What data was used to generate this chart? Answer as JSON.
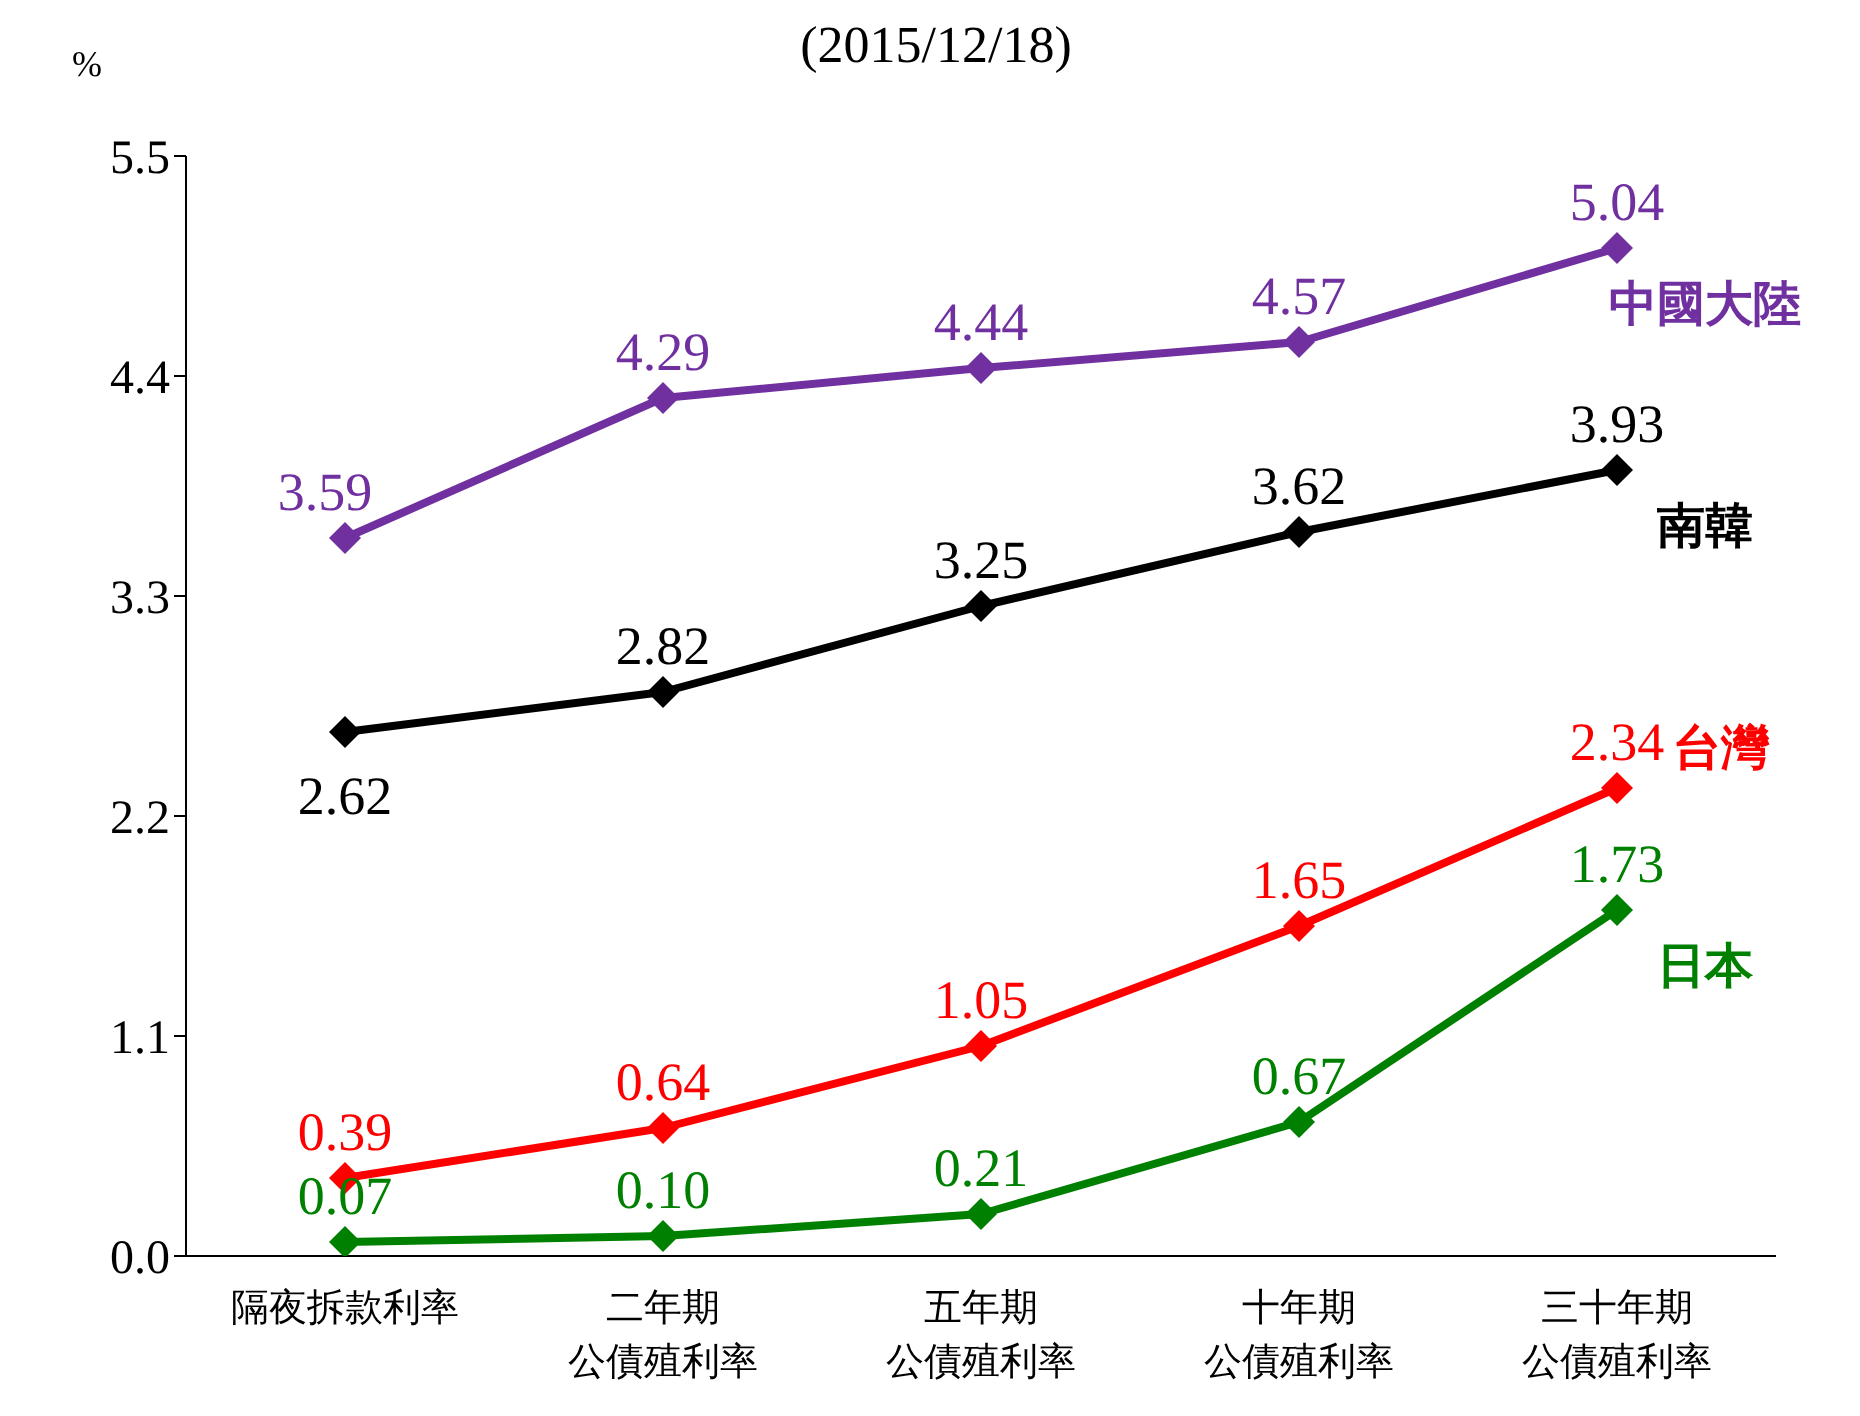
{
  "chart_data": {
    "type": "line",
    "title": "(2015/12/18)",
    "ylabel": "%",
    "categories": [
      "隔夜拆款利率",
      "二年期公債殖利率",
      "五年期公債殖利率",
      "十年期公債殖利率",
      "三十年期公債殖利率"
    ],
    "series": [
      {
        "name": "中國大陸",
        "color": "#7030a0",
        "values": [
          3.59,
          4.29,
          4.44,
          4.57,
          5.04
        ]
      },
      {
        "name": "南韓",
        "color": "#000000",
        "values": [
          2.62,
          2.82,
          3.25,
          3.62,
          3.93
        ]
      },
      {
        "name": "台灣",
        "color": "#ff0000",
        "values": [
          0.39,
          0.64,
          1.05,
          1.65,
          2.34
        ]
      },
      {
        "name": "日本",
        "color": "#008000",
        "values": [
          0.07,
          0.1,
          0.21,
          0.67,
          1.73
        ],
        "value_labels": [
          "0.07",
          "0.10",
          "0.21",
          "0.67",
          "1.73"
        ]
      }
    ],
    "ylim": [
      0,
      5.5
    ],
    "yticks": [
      {
        "value": 0,
        "label": "0.0"
      },
      1.1,
      2.2,
      3.3,
      4.4,
      5.5
    ],
    "grid": false,
    "legend": false,
    "marker": "diamond",
    "line_style": "solid",
    "data_labels": true
  }
}
